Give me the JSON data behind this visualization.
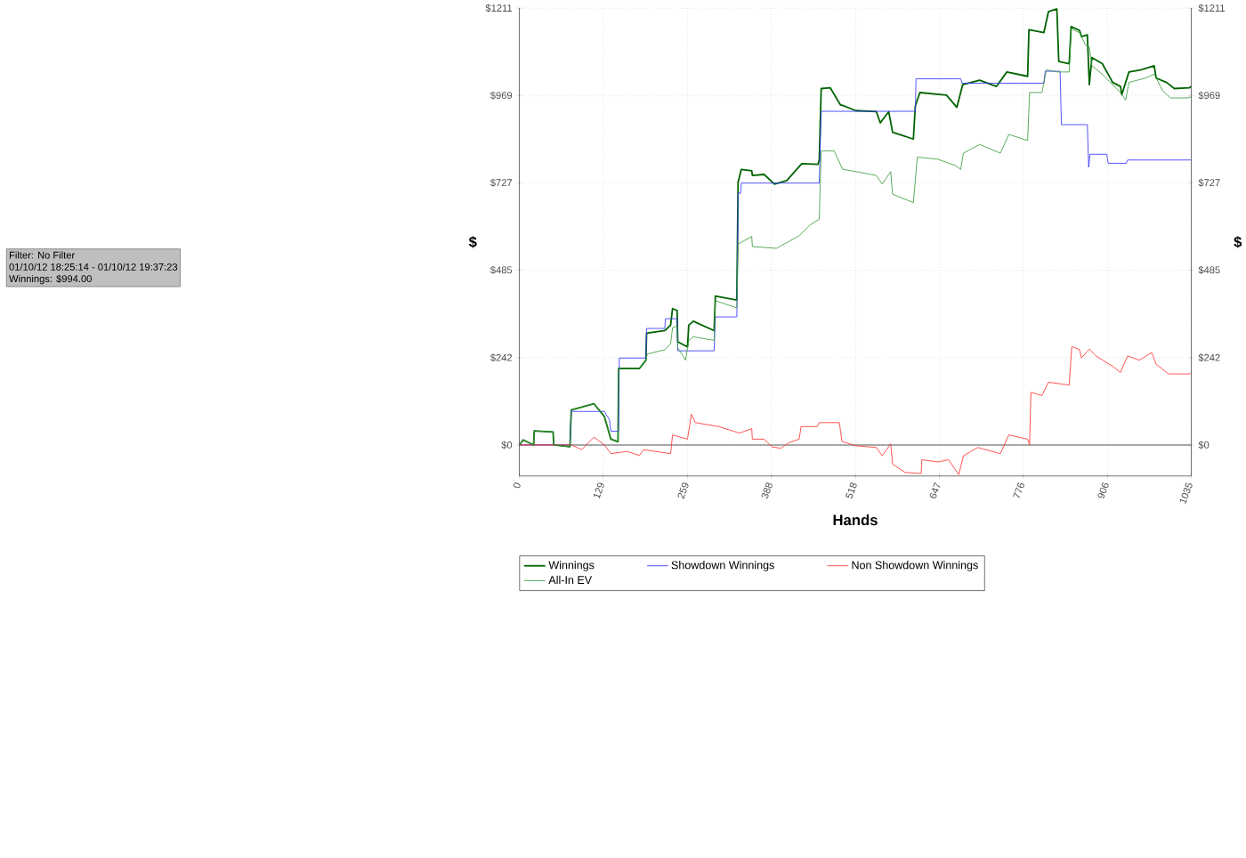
{
  "chart_data": {
    "type": "line",
    "xlabel": "Hands",
    "ylabel": "$",
    "y2label": "$",
    "annotations": [
      "Filter: No Filter",
      "01/10/12 18:25:14 - 01/10/12 19:37:23",
      "Winnings: $994.00"
    ],
    "xlim": [
      0,
      1035
    ],
    "xticks": [
      0,
      129,
      259,
      388,
      518,
      647,
      776,
      906,
      1035
    ],
    "ylim": [
      -86,
      1211
    ],
    "yticks": [
      {
        "value": 0,
        "label": "$0"
      },
      {
        "value": 242,
        "label": "$242"
      },
      {
        "value": 485,
        "label": "$485"
      },
      {
        "value": 727,
        "label": "$727"
      },
      {
        "value": 969,
        "label": "$969"
      },
      {
        "value": 1211,
        "label": "$1211"
      }
    ],
    "y2lim": [
      -86,
      1211
    ],
    "y2ticks": [
      {
        "value": 0,
        "label": "$0"
      },
      {
        "value": 242,
        "label": "$242"
      },
      {
        "value": 485,
        "label": "$485"
      },
      {
        "value": 727,
        "label": "$727"
      },
      {
        "value": 969,
        "label": "$969"
      },
      {
        "value": 1211,
        "label": "$1211"
      }
    ],
    "grid": true,
    "legend": "bottom",
    "marker": "none",
    "line_style": "solid",
    "ref_lines": [
      {
        "axis": "y",
        "value": 0,
        "color": "#555555"
      }
    ],
    "series": [
      {
        "name": "Winnings",
        "color": "#006400",
        "x": [
          0,
          6,
          22,
          23,
          52,
          53,
          78,
          80,
          115,
          131,
          141,
          152,
          153,
          185,
          195,
          196,
          224,
          233,
          236,
          243,
          244,
          259,
          261,
          268,
          300,
          302,
          335,
          337,
          342,
          358,
          359,
          377,
          393,
          412,
          435,
          460,
          462,
          465,
          479,
          495,
          497,
          518,
          550,
          556,
          569,
          575,
          607,
          610,
          617,
          658,
          674,
          683,
          709,
          735,
          751,
          783,
          785,
          808,
          815,
          828,
          831,
          847,
          850,
          863,
          866,
          875,
          878,
          882,
          898,
          914,
          926,
          928,
          939,
          958,
          978,
          981,
          997,
          1009,
          1032,
          1035
        ],
        "values": [
          0,
          14,
          0,
          39,
          36,
          0,
          -5,
          97,
          114,
          79,
          16,
          9,
          212,
          212,
          235,
          310,
          317,
          332,
          378,
          373,
          286,
          272,
          332,
          343,
          317,
          413,
          402,
          729,
          764,
          760,
          747,
          750,
          723,
          733,
          780,
          778,
          790,
          988,
          990,
          942,
          942,
          927,
          924,
          893,
          924,
          867,
          848,
          940,
          977,
          970,
          936,
          999,
          1011,
          994,
          1034,
          1022,
          1151,
          1143,
          1201,
          1209,
          1063,
          1057,
          1160,
          1149,
          1132,
          1137,
          999,
          1074,
          1057,
          1005,
          994,
          971,
          1034,
          1040,
          1051,
          1017,
          1005,
          988,
          990,
          994
        ]
      },
      {
        "name": "Showdown Winnings",
        "color": "#3333ff",
        "x": [
          0,
          78,
          80,
          82,
          131,
          139,
          141,
          153,
          154,
          195,
          196,
          224,
          225,
          243,
          244,
          300,
          302,
          335,
          337,
          341,
          342,
          462,
          465,
          610,
          611,
          680,
          682,
          808,
          810,
          833,
          835,
          875,
          877,
          879,
          905,
          907,
          935,
          937,
          1035
        ],
        "values": [
          0,
          0,
          97,
          93,
          93,
          69,
          38,
          38,
          241,
          241,
          323,
          323,
          350,
          350,
          261,
          261,
          355,
          355,
          698,
          698,
          726,
          726,
          925,
          925,
          1015,
          1015,
          1003,
          1003,
          1036,
          1036,
          888,
          888,
          770,
          806,
          806,
          781,
          781,
          790,
          790
        ]
      },
      {
        "name": "Non Showdown Winnings",
        "color": "#ff3333",
        "x": [
          0,
          80,
          96,
          115,
          131,
          141,
          166,
          185,
          191,
          233,
          236,
          259,
          265,
          271,
          307,
          339,
          358,
          359,
          377,
          390,
          403,
          415,
          431,
          434,
          459,
          462,
          493,
          497,
          518,
          550,
          559,
          572,
          575,
          594,
          619,
          620,
          645,
          661,
          677,
          684,
          706,
          741,
          754,
          783,
          786,
          788,
          805,
          815,
          847,
          851,
          863,
          866,
          878,
          888,
          914,
          926,
          937,
          955,
          974,
          981,
          1000,
          1032,
          1035
        ],
        "values": [
          0,
          0,
          -13,
          22,
          0,
          -24,
          -18,
          -29,
          -13,
          -24,
          28,
          16,
          85,
          62,
          51,
          33,
          45,
          16,
          16,
          -6,
          -9,
          6,
          16,
          51,
          51,
          62,
          62,
          10,
          -2,
          -7,
          -30,
          3,
          -53,
          -76,
          -79,
          -41,
          -47,
          -41,
          -82,
          -30,
          -7,
          -24,
          28,
          16,
          1,
          146,
          137,
          174,
          166,
          273,
          264,
          241,
          266,
          247,
          218,
          201,
          247,
          235,
          256,
          224,
          197,
          197,
          199
        ]
      },
      {
        "name": "All-In EV",
        "color": "#3a9a3a",
        "x": [
          0,
          6,
          22,
          23,
          52,
          53,
          78,
          80,
          115,
          131,
          141,
          152,
          153,
          185,
          195,
          197,
          224,
          233,
          236,
          243,
          244,
          256,
          261,
          268,
          300,
          302,
          335,
          337,
          358,
          359,
          396,
          431,
          447,
          462,
          465,
          485,
          498,
          518,
          550,
          559,
          572,
          575,
          607,
          613,
          645,
          671,
          680,
          684,
          709,
          741,
          754,
          783,
          786,
          805,
          812,
          829,
          847,
          850,
          863,
          872,
          878,
          882,
          898,
          926,
          934,
          939,
          964,
          978,
          991,
          1003,
          1029,
          1035
        ],
        "values": [
          0,
          14,
          0,
          39,
          36,
          0,
          -5,
          97,
          114,
          79,
          16,
          9,
          212,
          212,
          235,
          252,
          264,
          280,
          325,
          330,
          270,
          235,
          290,
          300,
          290,
          400,
          380,
          557,
          578,
          550,
          545,
          580,
          609,
          626,
          815,
          815,
          764,
          758,
          747,
          723,
          758,
          695,
          672,
          798,
          792,
          775,
          764,
          809,
          833,
          809,
          861,
          844,
          977,
          977,
          1040,
          1034,
          1034,
          1154,
          1143,
          1109,
          1103,
          1051,
          1028,
          977,
          956,
          1005,
          1017,
          1028,
          982,
          962,
          962,
          965
        ]
      }
    ]
  }
}
